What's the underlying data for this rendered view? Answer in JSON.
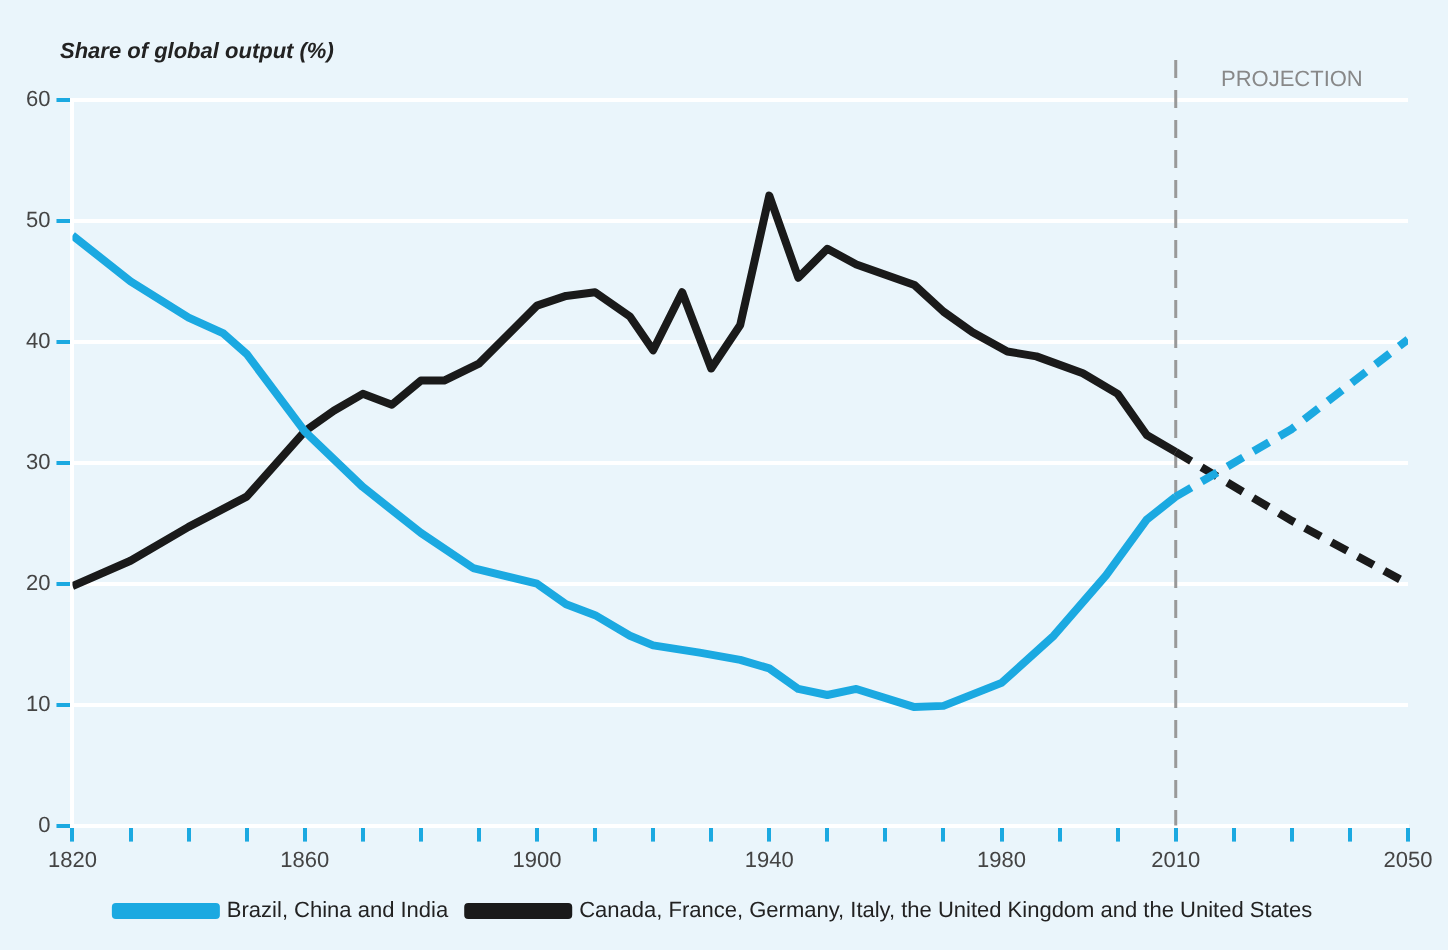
{
  "chart_data": {
    "type": "line",
    "ylabel": "Share of global output (%)",
    "xlim": [
      1820,
      2050
    ],
    "xticks": [
      1820,
      {
        "value": 1830,
        "label": null
      },
      {
        "value": 1840,
        "label": null
      },
      {
        "value": 1850,
        "label": null
      },
      1860,
      {
        "value": 1870,
        "label": null
      },
      {
        "value": 1880,
        "label": null
      },
      {
        "value": 1890,
        "label": null
      },
      1900,
      {
        "value": 1910,
        "label": null
      },
      {
        "value": 1920,
        "label": null
      },
      {
        "value": 1930,
        "label": null
      },
      1940,
      {
        "value": 1950,
        "label": null
      },
      {
        "value": 1960,
        "label": null
      },
      {
        "value": 1970,
        "label": null
      },
      1980,
      {
        "value": 1990,
        "label": null
      },
      {
        "value": 2000,
        "label": null
      },
      2010,
      {
        "value": 2020,
        "label": null
      },
      {
        "value": 2030,
        "label": null
      },
      {
        "value": 2040,
        "label": null
      },
      2050
    ],
    "ylim": [
      0,
      60
    ],
    "yticks": [
      0,
      10,
      20,
      30,
      40,
      50,
      60
    ],
    "grid": "y",
    "legend": "bottom",
    "marker": "none",
    "series": [
      {
        "name": "Brazil, China and India",
        "color": "#1ba9e1",
        "line_style": "solid",
        "x": [
          1820,
          1830,
          1840,
          1846,
          1850,
          1860,
          1870,
          1880,
          1889,
          1900,
          1905,
          1910,
          1916,
          1920,
          1928,
          1935,
          1940,
          1945,
          1950,
          1955,
          1965,
          1970,
          1980,
          1989,
          1998,
          2005,
          2010
        ],
        "values": [
          48.8,
          45,
          42,
          40.7,
          39,
          32.6,
          28,
          24.2,
          21.3,
          20,
          18.3,
          17.4,
          15.7,
          14.9,
          14.3,
          13.7,
          13,
          11.3,
          10.8,
          11.3,
          9.8,
          9.9,
          11.8,
          15.7,
          20.7,
          25.3,
          27.2
        ]
      },
      {
        "name": "Canada, France, Germany, Italy, the United Kingdom and the United States",
        "color": "#1a1a1a",
        "line_style": "solid",
        "x": [
          1820,
          1830,
          1840,
          1850,
          1860,
          1865,
          1870,
          1875,
          1880,
          1884,
          1890,
          1900,
          1905,
          1910,
          1916,
          1920,
          1925,
          1930,
          1935,
          1940,
          1945,
          1950,
          1955,
          1965,
          1970,
          1975,
          1981,
          1986,
          1994,
          2000,
          2005,
          2010
        ],
        "values": [
          19.8,
          21.9,
          24.7,
          27.2,
          32.6,
          34.3,
          35.7,
          34.8,
          36.8,
          36.8,
          38.2,
          43,
          43.8,
          44.1,
          42.1,
          39.3,
          44.1,
          37.8,
          41.4,
          52.1,
          45.3,
          47.7,
          46.4,
          44.7,
          42.5,
          40.8,
          39.2,
          38.8,
          37.4,
          35.7,
          32.3,
          30.9
        ]
      },
      {
        "color": "#1ba9e1",
        "line_style": "dashed",
        "x": [
          2010,
          2030,
          2050
        ],
        "values": [
          27.2,
          32.8,
          40.2
        ]
      },
      {
        "color": "#1a1a1a",
        "line_style": "dashed",
        "x": [
          2010,
          2030,
          2050
        ],
        "values": [
          30.9,
          25.2,
          20
        ]
      }
    ],
    "ref_lines": [
      {
        "axis": "x",
        "value": 2010,
        "label": "PROJECTION",
        "color": "#999999",
        "line_style": "dashed"
      }
    ]
  }
}
